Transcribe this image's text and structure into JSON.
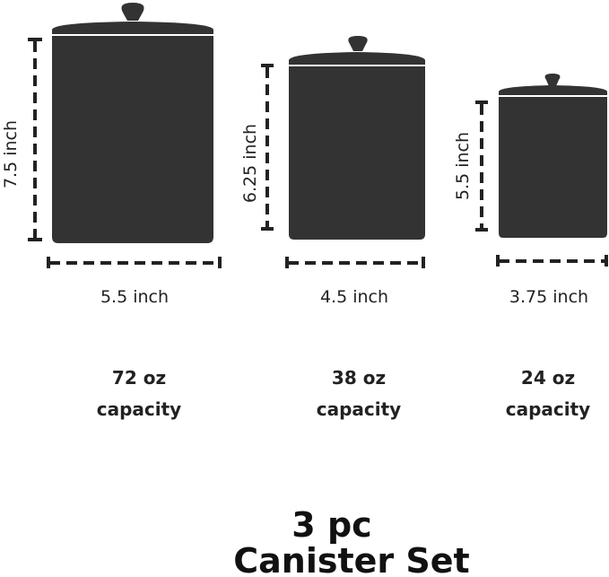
{
  "canister_color": "#333333",
  "canisters": [
    {
      "height_label": "7.5 inch",
      "width_label": "5.5 inch",
      "capacity_value": "72 oz",
      "capacity_label": "capacity"
    },
    {
      "height_label": "6.25 inch",
      "width_label": "4.5 inch",
      "capacity_value": "38 oz",
      "capacity_label": "capacity"
    },
    {
      "height_label": "5.5 inch",
      "width_label": "3.75 inch",
      "capacity_value": "24 oz",
      "capacity_label": "capacity"
    }
  ],
  "title": {
    "line1": "3 pc",
    "line2": "Canister Set"
  }
}
